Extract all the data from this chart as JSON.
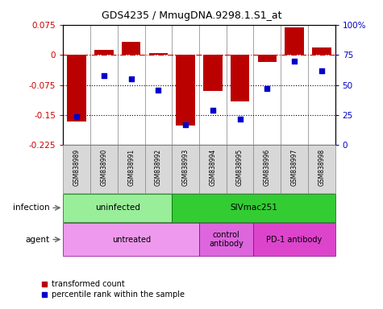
{
  "title": "GDS4235 / MmugDNA.9298.1.S1_at",
  "samples": [
    "GSM838989",
    "GSM838990",
    "GSM838991",
    "GSM838992",
    "GSM838993",
    "GSM838994",
    "GSM838995",
    "GSM838996",
    "GSM838997",
    "GSM838998"
  ],
  "transformed_count": [
    -0.165,
    0.012,
    0.032,
    0.005,
    -0.175,
    -0.09,
    -0.115,
    -0.018,
    0.068,
    0.018
  ],
  "percentile_rank": [
    24,
    58,
    55,
    46,
    17,
    29,
    22,
    47,
    70,
    62
  ],
  "ylim_left": [
    -0.225,
    0.075
  ],
  "ylim_right": [
    0,
    100
  ],
  "yticks_left": [
    0.075,
    0,
    -0.075,
    -0.15,
    -0.225
  ],
  "yticks_right": [
    100,
    75,
    50,
    25,
    0
  ],
  "bar_color": "#bb0000",
  "dot_color": "#0000cc",
  "infection_groups": [
    {
      "label": "uninfected",
      "start": 0,
      "end": 4,
      "color": "#99ee99"
    },
    {
      "label": "SIVmac251",
      "start": 4,
      "end": 10,
      "color": "#33cc33"
    }
  ],
  "agent_groups": [
    {
      "label": "untreated",
      "start": 0,
      "end": 5,
      "color": "#ee99ee"
    },
    {
      "label": "control\nantibody",
      "start": 5,
      "end": 7,
      "color": "#dd66dd"
    },
    {
      "label": "PD-1 antibody",
      "start": 7,
      "end": 10,
      "color": "#dd44cc"
    }
  ],
  "legend_bar_label": "transformed count",
  "legend_dot_label": "percentile rank within the sample",
  "row_label_infection": "infection",
  "row_label_agent": "agent"
}
